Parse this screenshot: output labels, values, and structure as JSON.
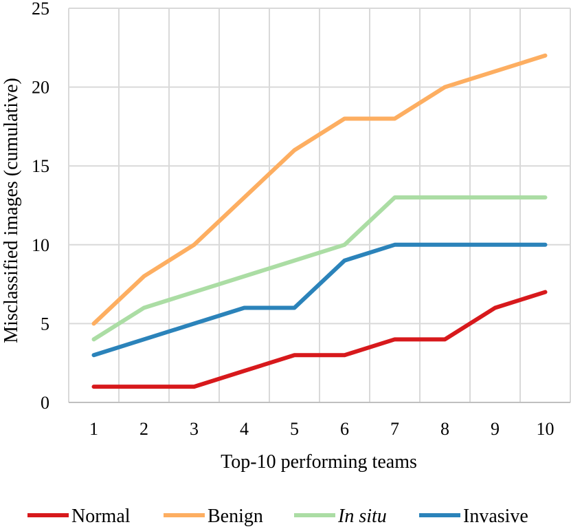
{
  "chart_data": {
    "type": "line",
    "title": "",
    "xlabel": "Top-10 performing teams",
    "ylabel": "Misclassified images  (cumulative)",
    "x": [
      "1",
      "2",
      "3",
      "4",
      "5",
      "6",
      "7",
      "8",
      "9",
      "10"
    ],
    "ylim": [
      0,
      25
    ],
    "yticks": [
      "0",
      "5",
      "10",
      "15",
      "20",
      "25"
    ],
    "grid": true,
    "legend_position": "bottom",
    "series": [
      {
        "name": "Normal",
        "italic": false,
        "color": "#d7191c",
        "values": [
          1,
          1,
          1,
          2,
          3,
          3,
          4,
          4,
          6,
          7
        ]
      },
      {
        "name": "Benign",
        "italic": false,
        "color": "#fdae61",
        "values": [
          5,
          8,
          10,
          13,
          16,
          18,
          18,
          20,
          21,
          22
        ]
      },
      {
        "name": "In situ",
        "italic": true,
        "color": "#abdda4",
        "values": [
          4,
          6,
          7,
          8,
          9,
          10,
          13,
          13,
          13,
          13
        ]
      },
      {
        "name": "Invasive",
        "italic": false,
        "color": "#2b83ba",
        "values": [
          3,
          4,
          5,
          6,
          6,
          9,
          10,
          10,
          10,
          10
        ]
      }
    ]
  }
}
